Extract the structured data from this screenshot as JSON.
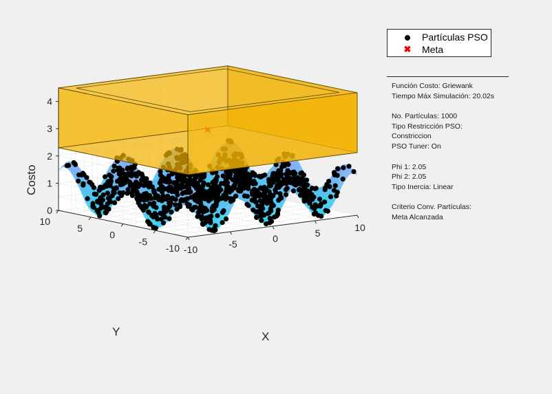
{
  "chart_data": {
    "type": "scatter",
    "title": "",
    "xlabel": "X",
    "ylabel": "Y",
    "zlabel": "Costo",
    "xlim": [
      -10,
      10
    ],
    "ylim": [
      -10,
      10
    ],
    "zlim": [
      0,
      4.5
    ],
    "x_ticks": [
      "-10",
      "-5",
      "0",
      "5",
      "10"
    ],
    "y_ticks": [
      "-10",
      "-5",
      "0",
      "5",
      "10"
    ],
    "z_ticks": [
      "0",
      "1",
      "2",
      "3",
      "4"
    ],
    "surface_function": "griewank",
    "constraint_box": {
      "x": [
        -10,
        10
      ],
      "y": [
        -10,
        10
      ],
      "z": [
        2.3,
        4.5
      ],
      "color": "#f2b200"
    },
    "series": [
      {
        "name": "Partículas PSO",
        "marker": "circle",
        "color": "#000000",
        "count": 1000
      },
      {
        "name": "Meta",
        "marker": "x",
        "color": "#ff0000",
        "points": [
          [
            0,
            0,
            3.05
          ]
        ]
      }
    ],
    "legend_position": "top-right",
    "grid": true
  },
  "legend": {
    "items": [
      {
        "label": "Partículas PSO",
        "icon": "filled-circle"
      },
      {
        "label": "Meta",
        "icon": "red-x"
      }
    ]
  },
  "info": {
    "lines": [
      "Función Costo: Griewank",
      "Tiempo Máx Simulación: 20.02s",
      "",
      "No. Partículas: 1000",
      "Tipo Restricción PSO:",
      "Constriccion",
      "PSO Tuner: On",
      "",
      "Phi 1: 2.05",
      "Phi 2: 2.05",
      "Tipo Inercia: Linear",
      "",
      "Criterio Conv. Partículas:",
      "Meta Alcanzada"
    ]
  }
}
